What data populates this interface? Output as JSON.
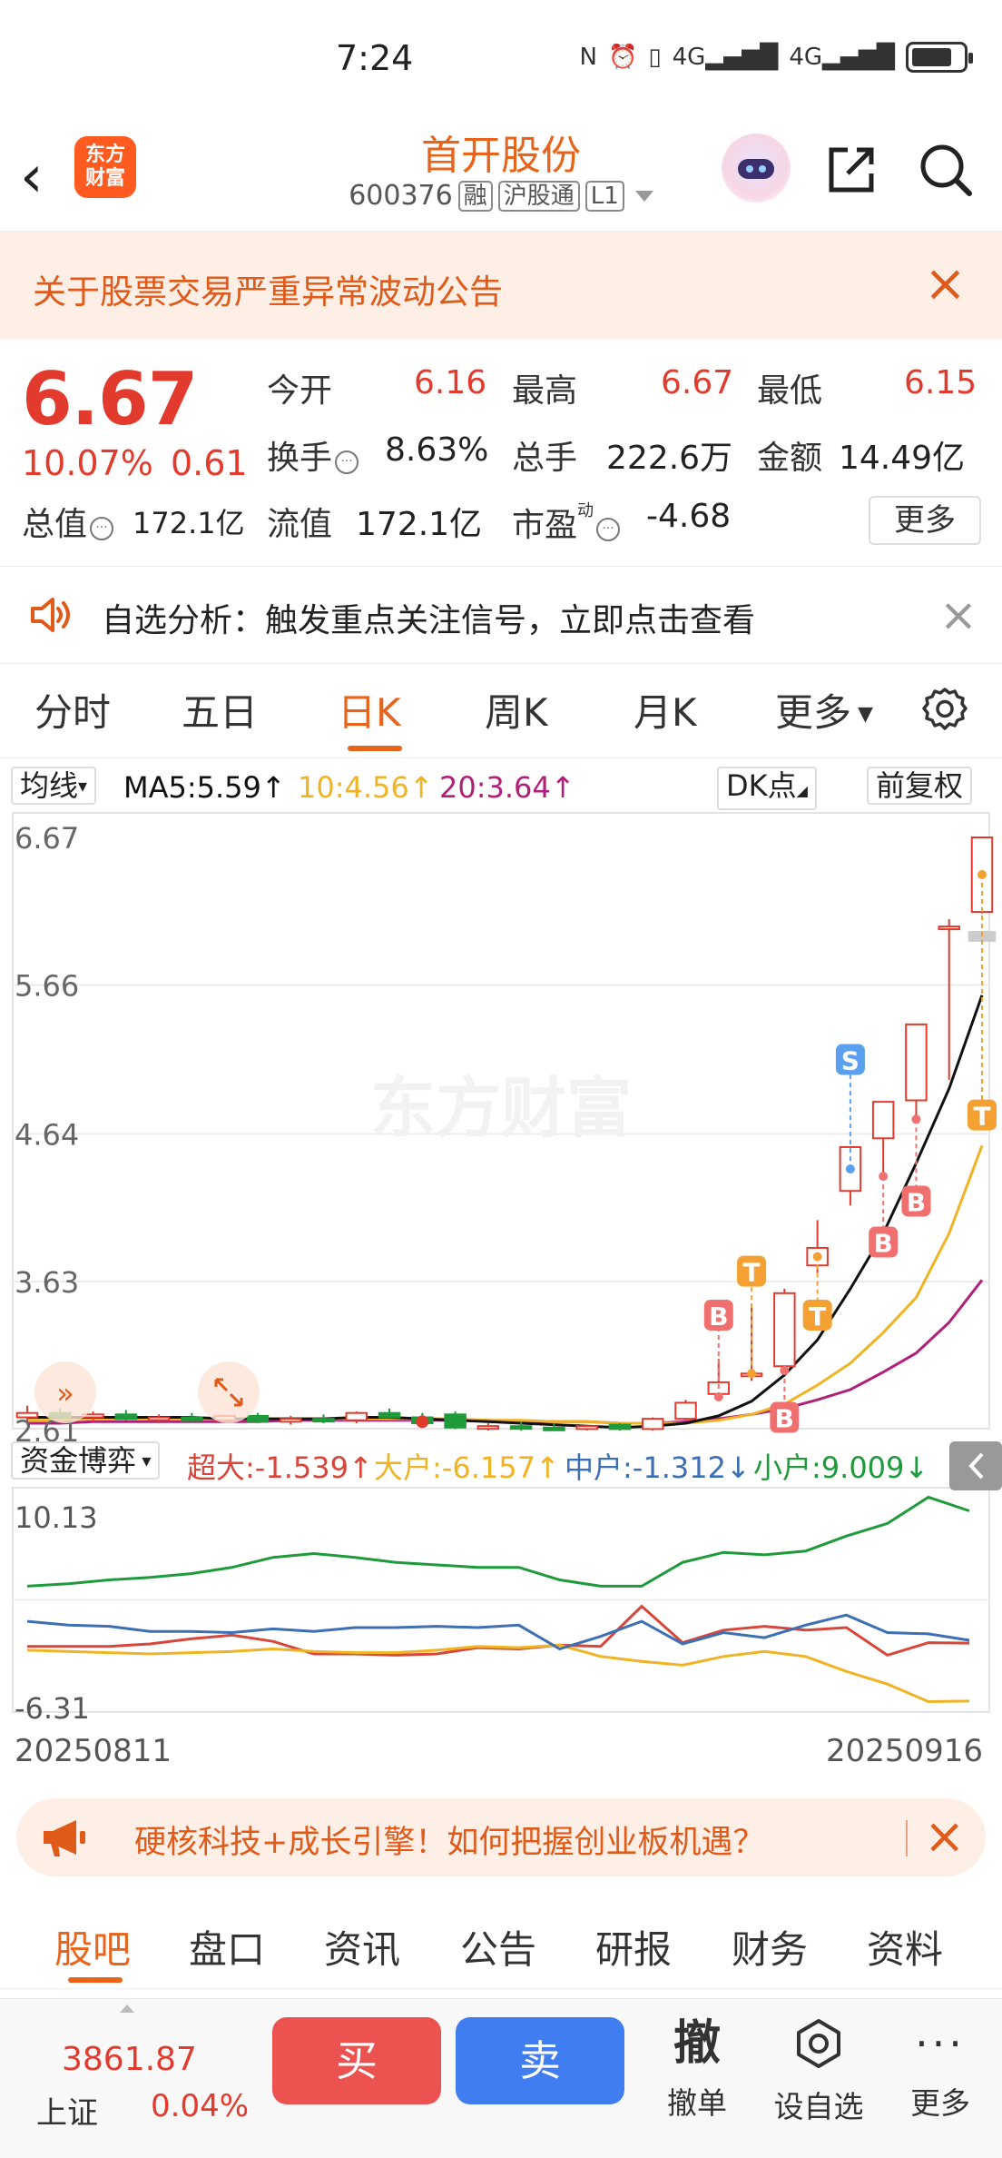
{
  "status": {
    "time": "7:24",
    "net1": "4G",
    "net2": "4G"
  },
  "header": {
    "logo_line1": "东方",
    "logo_line2": "财富",
    "stock_name": "首开股份",
    "stock_code": "600376",
    "tag_margin": "融",
    "tag_connect": "沪股通",
    "tag_level": "L1"
  },
  "notice": {
    "text": "关于股票交易严重异常波动公告"
  },
  "quote": {
    "price": "6.67",
    "change_pct": "10.07%",
    "change": "0.61",
    "open_label": "今开",
    "open": "6.16",
    "high_label": "最高",
    "high": "6.67",
    "low_label": "最低",
    "low": "6.15",
    "turnover_label": "换手",
    "turnover": "8.63%",
    "volume_label": "总手",
    "volume": "222.6万",
    "amount_label": "金额",
    "amount": "14.49亿",
    "mktcap_label": "总值",
    "mktcap": "172.1亿",
    "float_label": "流值",
    "float": "172.1亿",
    "pe_label": "市盈",
    "pe_sup": "动",
    "pe": "-4.68",
    "more_label": "更多"
  },
  "signal": {
    "text": "自选分析：触发重点关注信号，立即点击查看"
  },
  "period_tabs": [
    "分时",
    "五日",
    "日K",
    "周K",
    "月K",
    "更多"
  ],
  "chart": {
    "ma_select": "均线",
    "ma5": "MA5:5.59↑",
    "ma10": "10:4.56↑",
    "ma20": "20:3.64↑",
    "dk_button": "DK点",
    "adjust_button": "前复权",
    "watermark": "东方财富",
    "y_labels": [
      "6.67",
      "5.66",
      "4.64",
      "3.63",
      "2.61"
    ],
    "fund_select": "资金博弈",
    "fund_super": "超大:-1.539↑",
    "fund_big": "大户:-6.157↑",
    "fund_mid": "中户:-1.312↓",
    "fund_small": "小户:9.009↓",
    "fund_y_top": "10.13",
    "fund_y_bottom": "-6.31",
    "date_start": "20250811",
    "date_end": "20250916",
    "colors": {
      "up": "#e23b2e",
      "down": "#1f9a3b",
      "ma5": "#111111",
      "ma10": "#f0b323",
      "ma20": "#b0207a"
    }
  },
  "chart_data": {
    "type": "candlestick",
    "x_start": "20250811",
    "x_end": "20250916",
    "ylim": [
      2.61,
      6.67
    ],
    "candles": [
      {
        "o": 2.7,
        "h": 2.78,
        "l": 2.66,
        "c": 2.73
      },
      {
        "o": 2.73,
        "h": 2.76,
        "l": 2.68,
        "c": 2.7
      },
      {
        "o": 2.7,
        "h": 2.74,
        "l": 2.67,
        "c": 2.72
      },
      {
        "o": 2.72,
        "h": 2.75,
        "l": 2.68,
        "c": 2.69
      },
      {
        "o": 2.69,
        "h": 2.72,
        "l": 2.66,
        "c": 2.7
      },
      {
        "o": 2.7,
        "h": 2.73,
        "l": 2.67,
        "c": 2.68
      },
      {
        "o": 2.68,
        "h": 2.72,
        "l": 2.66,
        "c": 2.71
      },
      {
        "o": 2.71,
        "h": 2.73,
        "l": 2.66,
        "c": 2.67
      },
      {
        "o": 2.67,
        "h": 2.71,
        "l": 2.65,
        "c": 2.69
      },
      {
        "o": 2.69,
        "h": 2.72,
        "l": 2.66,
        "c": 2.68
      },
      {
        "o": 2.68,
        "h": 2.74,
        "l": 2.66,
        "c": 2.73
      },
      {
        "o": 2.73,
        "h": 2.76,
        "l": 2.7,
        "c": 2.7
      },
      {
        "o": 2.7,
        "h": 2.73,
        "l": 2.65,
        "c": 2.66
      },
      {
        "o": 2.72,
        "h": 2.74,
        "l": 2.62,
        "c": 2.63
      },
      {
        "o": 2.63,
        "h": 2.66,
        "l": 2.61,
        "c": 2.64
      },
      {
        "o": 2.64,
        "h": 2.67,
        "l": 2.61,
        "c": 2.63
      },
      {
        "o": 2.63,
        "h": 2.66,
        "l": 2.61,
        "c": 2.62
      },
      {
        "o": 2.62,
        "h": 2.65,
        "l": 2.61,
        "c": 2.64
      },
      {
        "o": 2.65,
        "h": 2.66,
        "l": 2.61,
        "c": 2.62
      },
      {
        "o": 2.62,
        "h": 2.7,
        "l": 2.61,
        "c": 2.69
      },
      {
        "o": 2.69,
        "h": 2.82,
        "l": 2.68,
        "c": 2.8
      },
      {
        "o": 2.86,
        "h": 3.1,
        "l": 2.84,
        "c": 2.94
      },
      {
        "o": 3.0,
        "h": 3.48,
        "l": 2.95,
        "c": 3.0
      },
      {
        "o": 3.05,
        "h": 3.58,
        "l": 3.02,
        "c": 3.55
      },
      {
        "o": 3.74,
        "h": 4.05,
        "l": 3.69,
        "c": 3.86
      },
      {
        "o": 4.25,
        "h": 4.55,
        "l": 4.15,
        "c": 4.55
      },
      {
        "o": 4.61,
        "h": 4.86,
        "l": 4.35,
        "c": 4.86
      },
      {
        "o": 4.87,
        "h": 5.39,
        "l": 4.74,
        "c": 5.39
      },
      {
        "o": 6.06,
        "h": 6.11,
        "l": 5.01,
        "c": 6.06
      },
      {
        "o": 6.16,
        "h": 6.67,
        "l": 6.15,
        "c": 6.67
      }
    ],
    "ma5": [
      2.7,
      2.7,
      2.7,
      2.7,
      2.7,
      2.7,
      2.69,
      2.69,
      2.69,
      2.69,
      2.7,
      2.7,
      2.69,
      2.68,
      2.67,
      2.66,
      2.65,
      2.64,
      2.63,
      2.64,
      2.66,
      2.71,
      2.81,
      2.99,
      3.23,
      3.58,
      3.96,
      4.44,
      4.95,
      5.59
    ],
    "ma10": [
      2.68,
      2.68,
      2.69,
      2.69,
      2.69,
      2.69,
      2.69,
      2.69,
      2.69,
      2.69,
      2.69,
      2.69,
      2.69,
      2.69,
      2.68,
      2.68,
      2.67,
      2.67,
      2.66,
      2.66,
      2.66,
      2.68,
      2.72,
      2.79,
      2.92,
      3.07,
      3.28,
      3.52,
      3.96,
      4.56
    ],
    "ma20": [
      2.66,
      2.66,
      2.67,
      2.67,
      2.67,
      2.67,
      2.67,
      2.67,
      2.68,
      2.68,
      2.68,
      2.68,
      2.68,
      2.68,
      2.68,
      2.67,
      2.67,
      2.67,
      2.66,
      2.66,
      2.67,
      2.69,
      2.72,
      2.76,
      2.82,
      2.89,
      3.01,
      3.14,
      3.35,
      3.64
    ],
    "markers": [
      {
        "i": 21,
        "label": "B",
        "color": "#f07070",
        "price": 3.4
      },
      {
        "i": 22,
        "label": "T",
        "color": "#f5a033",
        "price": 3.7
      },
      {
        "i": 23,
        "label": "B",
        "color": "#f07070",
        "price": 2.7
      },
      {
        "i": 24,
        "label": "T",
        "color": "#f5a033",
        "price": 3.4
      },
      {
        "i": 25,
        "label": "S",
        "color": "#5aa0ee",
        "price": 5.15
      },
      {
        "i": 26,
        "label": "B",
        "color": "#f07070",
        "price": 3.9
      },
      {
        "i": 27,
        "label": "B",
        "color": "#f07070",
        "price": 4.18
      },
      {
        "i": 29,
        "label": "T",
        "color": "#f5a033",
        "price": 4.77
      }
    ],
    "fund_ylim": [
      -6.31,
      10.13
    ],
    "fund_series": [
      {
        "name": "超大",
        "color": "#d8453a",
        "values": [
          -1.8,
          -1.8,
          -1.8,
          -1.6,
          -1.2,
          -0.9,
          -1.4,
          -2.4,
          -2.4,
          -2.5,
          -2.4,
          -1.9,
          -2.0,
          -1.7,
          -1.8,
          1.4,
          -1.5,
          -0.5,
          -0.2,
          -0.5,
          -0.3,
          -2.5,
          -1.5,
          -1.539
        ]
      },
      {
        "name": "大户",
        "color": "#f0b323",
        "values": [
          -2.1,
          -2.2,
          -2.3,
          -2.4,
          -2.3,
          -2.2,
          -2.0,
          -2.2,
          -2.3,
          -2.3,
          -2.1,
          -1.8,
          -1.9,
          -1.7,
          -2.6,
          -3.0,
          -3.3,
          -2.6,
          -2.2,
          -2.6,
          -3.8,
          -4.8,
          -6.2,
          -6.157
        ]
      },
      {
        "name": "中户",
        "color": "#3d6fb5",
        "values": [
          0.2,
          -0.1,
          -0.2,
          -0.6,
          -0.6,
          -0.7,
          -0.4,
          -0.6,
          -0.3,
          -0.3,
          -0.2,
          -0.3,
          -0.1,
          -2.0,
          -1.0,
          0.2,
          -1.6,
          -0.7,
          -1.1,
          -0.1,
          0.7,
          -0.7,
          -0.8,
          -1.312
        ]
      },
      {
        "name": "小户",
        "color": "#1f9a3b",
        "values": [
          3.0,
          3.2,
          3.5,
          3.7,
          4.0,
          4.5,
          5.3,
          5.6,
          5.3,
          4.9,
          4.7,
          4.5,
          4.5,
          3.5,
          3.0,
          3.0,
          4.9,
          5.7,
          5.5,
          5.8,
          7.0,
          8.0,
          10.1,
          9.009
        ]
      }
    ]
  },
  "promo": {
    "text": "硬核科技+成长引擎！如何把握创业板机遇？"
  },
  "sub_tabs": [
    "股吧",
    "盘口",
    "资讯",
    "公告",
    "研报",
    "财务",
    "资料"
  ],
  "bottom": {
    "index_value": "3861.87",
    "index_name": "上证",
    "index_pct": "0.04%",
    "buy": "买",
    "sell": "卖",
    "cancel_label": "撤单",
    "cancel_char": "撤",
    "watch_label": "设自选",
    "more_label": "更多"
  }
}
